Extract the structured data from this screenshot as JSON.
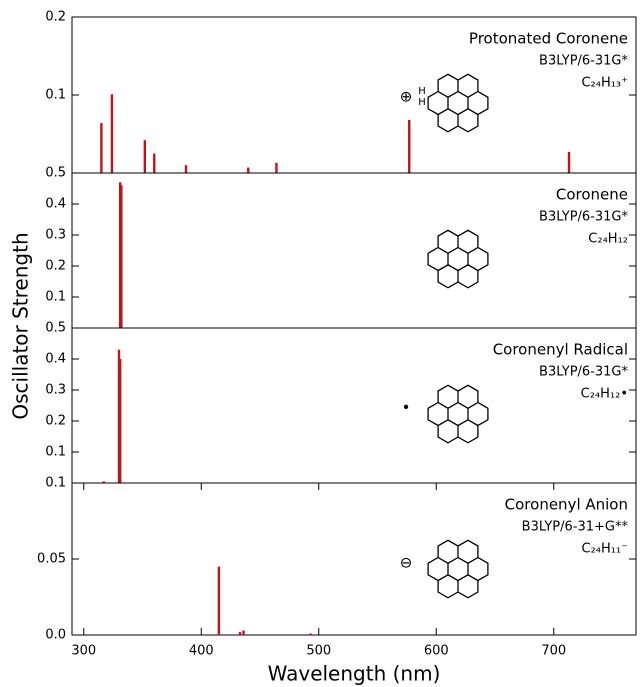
{
  "ylabel": "Oscillator Strength",
  "chart_data": [
    {
      "type": "bar",
      "title": "Protonated Coronene",
      "method": "B3LYP/6-31G*",
      "formula": "C₂₄H₁₃⁺",
      "marker": "⊕",
      "atoms": [
        "H",
        "H"
      ],
      "x": [
        315,
        324,
        352,
        360,
        387,
        440,
        464,
        577,
        713
      ],
      "values": [
        0.064,
        0.101,
        0.042,
        0.025,
        0.01,
        0.007,
        0.013,
        0.068,
        0.027
      ],
      "color": "#c0141c",
      "xlim": [
        290,
        770
      ],
      "ylim": [
        0,
        0.2
      ],
      "yticks": [
        0.1,
        0.2
      ]
    },
    {
      "type": "bar",
      "title": "Coronene",
      "method": "B3LYP/6-31G*",
      "formula": "C₂₄H₁₂",
      "x": [
        331,
        332
      ],
      "values": [
        0.47,
        0.46
      ],
      "color": "#c0141c",
      "xlim": [
        290,
        770
      ],
      "ylim": [
        0,
        0.5
      ],
      "yticks": [
        0.1,
        0.2,
        0.3,
        0.4,
        0.5
      ]
    },
    {
      "type": "bar",
      "title": "Coronenyl Radical",
      "method": "B3LYP/6-31G*",
      "formula": "C₂₄H₁₂•",
      "marker": "•",
      "x": [
        317,
        330,
        331
      ],
      "values": [
        0.005,
        0.43,
        0.4
      ],
      "color": "#c0141c",
      "xlim": [
        290,
        770
      ],
      "ylim": [
        0,
        0.5
      ],
      "yticks": [
        0.1,
        0.2,
        0.3,
        0.4,
        0.5
      ]
    },
    {
      "type": "bar",
      "title": "Coronenyl Anion",
      "method": "B3LYP/6-31+G**",
      "formula": "C₂₄H₁₁⁻",
      "marker": "⊖",
      "x": [
        415,
        433,
        436,
        493
      ],
      "values": [
        0.045,
        0.002,
        0.003,
        0.001
      ],
      "color": "#c0141c",
      "xlim": [
        290,
        770
      ],
      "ylim": [
        0,
        0.1
      ],
      "yticks": [
        {
          "value": 0,
          "label": "0.0"
        },
        0.05,
        0.1
      ],
      "xticks": [
        300,
        400,
        500,
        600,
        700
      ],
      "xlabel": "Wavelength (nm)"
    }
  ]
}
